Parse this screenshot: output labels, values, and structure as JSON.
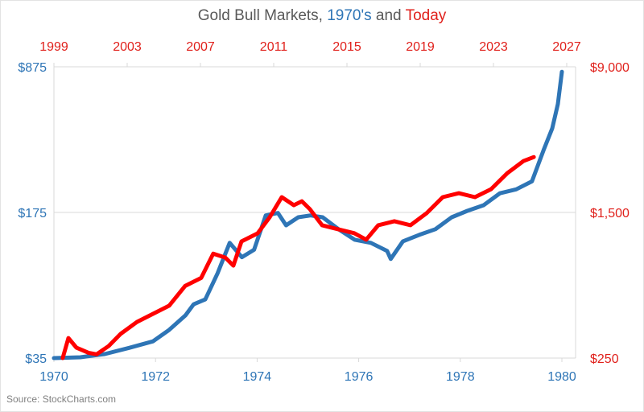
{
  "chart_data": {
    "type": "line",
    "title": {
      "parts": [
        {
          "text": "Gold Bull Markets, ",
          "color": "#595959"
        },
        {
          "text": "1970's",
          "color": "#2e75b6"
        },
        {
          "text": " and ",
          "color": "#595959"
        },
        {
          "text": "Today",
          "color": "#e0201b"
        }
      ]
    },
    "source": "Source: StockCharts.com",
    "grid": true,
    "legend": "none",
    "x_bottom": {
      "label": "",
      "color": "#2e75b6",
      "range": [
        1970,
        1980.5
      ],
      "ticks": [
        1970,
        1972,
        1974,
        1976,
        1978,
        1980
      ],
      "tick_labels": [
        "1970",
        "1972",
        "1974",
        "1976",
        "1978",
        "1980"
      ]
    },
    "x_top": {
      "label": "",
      "color": "#e0201b",
      "range": [
        1999,
        2027.6
      ],
      "ticks": [
        1999,
        2003,
        2007,
        2011,
        2015,
        2019,
        2023,
        2027
      ],
      "tick_labels": [
        "1999",
        "2003",
        "2007",
        "2011",
        "2015",
        "2019",
        "2023",
        "2027"
      ]
    },
    "y_left": {
      "scale": "log",
      "color": "#2e75b6",
      "range": [
        35,
        875
      ],
      "ticks": [
        35,
        175,
        875
      ],
      "tick_labels": [
        "$35",
        "$175",
        "$875"
      ]
    },
    "y_right": {
      "scale": "log",
      "color": "#e0201b",
      "range": [
        250,
        9000
      ],
      "ticks": [
        250,
        1500,
        9000
      ],
      "tick_labels": [
        "$250",
        "$1,500",
        "$9,000"
      ]
    },
    "series": [
      {
        "name": "Gold 1970's",
        "axis": "bottom-left",
        "color": "#2e75b6",
        "points": [
          [
            1970.0,
            35
          ],
          [
            1970.52,
            35.3
          ],
          [
            1971.0,
            36.6
          ],
          [
            1971.48,
            39.2
          ],
          [
            1971.95,
            42.1
          ],
          [
            1972.27,
            47.8
          ],
          [
            1972.59,
            56.1
          ],
          [
            1972.75,
            63.4
          ],
          [
            1972.98,
            66.9
          ],
          [
            1973.22,
            89.2
          ],
          [
            1973.46,
            125
          ],
          [
            1973.7,
            106.7
          ],
          [
            1973.94,
            115.8
          ],
          [
            1974.17,
            169.3
          ],
          [
            1974.41,
            173.9
          ],
          [
            1974.57,
            151.8
          ],
          [
            1974.81,
            165.9
          ],
          [
            1975.05,
            169.3
          ],
          [
            1975.29,
            165.9
          ],
          [
            1975.6,
            145.4
          ],
          [
            1975.92,
            129.5
          ],
          [
            1976.24,
            125
          ],
          [
            1976.56,
            114.3
          ],
          [
            1976.63,
            104.7
          ],
          [
            1976.87,
            127.2
          ],
          [
            1977.19,
            136.6
          ],
          [
            1977.51,
            145.4
          ],
          [
            1977.83,
            165.9
          ],
          [
            1978.14,
            178.1
          ],
          [
            1978.46,
            189.5
          ],
          [
            1978.78,
            216.2
          ],
          [
            1979.1,
            225.9
          ],
          [
            1979.41,
            246.7
          ],
          [
            1979.65,
            353.6
          ],
          [
            1979.81,
            442.9
          ],
          [
            1979.92,
            579.5
          ],
          [
            1980.0,
            828
          ]
        ]
      },
      {
        "name": "Gold Today",
        "axis": "top-right",
        "color": "#ff0000",
        "points": [
          [
            1999.48,
            250
          ],
          [
            1999.79,
            320
          ],
          [
            2000.23,
            284
          ],
          [
            2000.89,
            267
          ],
          [
            2001.33,
            262
          ],
          [
            2001.99,
            290
          ],
          [
            2002.65,
            337
          ],
          [
            2003.53,
            390
          ],
          [
            2004.41,
            431
          ],
          [
            2005.29,
            476
          ],
          [
            2006.16,
            607
          ],
          [
            2007.04,
            670
          ],
          [
            2007.7,
            904
          ],
          [
            2008.36,
            861
          ],
          [
            2008.8,
            780
          ],
          [
            2009.24,
            1050
          ],
          [
            2010.12,
            1160
          ],
          [
            2010.78,
            1414
          ],
          [
            2011.44,
            1810
          ],
          [
            2012.1,
            1640
          ],
          [
            2012.54,
            1722
          ],
          [
            2012.98,
            1560
          ],
          [
            2013.64,
            1282
          ],
          [
            2014.52,
            1220
          ],
          [
            2015.4,
            1162
          ],
          [
            2016.05,
            1073
          ],
          [
            2016.71,
            1282
          ],
          [
            2017.59,
            1347
          ],
          [
            2018.47,
            1282
          ],
          [
            2019.35,
            1486
          ],
          [
            2020.23,
            1810
          ],
          [
            2021.11,
            1901
          ],
          [
            2021.99,
            1810
          ],
          [
            2022.87,
            1996
          ],
          [
            2023.75,
            2430
          ],
          [
            2024.63,
            2821
          ],
          [
            2025.2,
            2964
          ]
        ]
      }
    ]
  }
}
